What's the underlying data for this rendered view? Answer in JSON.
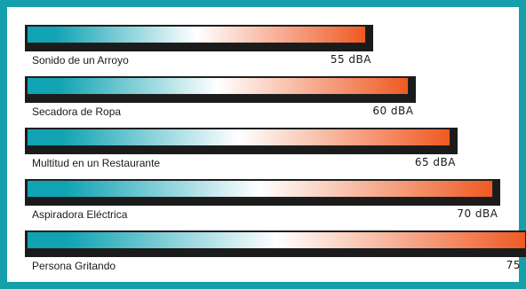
{
  "chart_data": {
    "type": "bar",
    "orientation": "horizontal",
    "categories": [
      "Sonido de un Arroyo",
      "Secadora de Ropa",
      "Multitud en un Restaurante",
      "Aspiradora Eléctrica",
      "Persona Gritando"
    ],
    "values": [
      55,
      60,
      65,
      70,
      75
    ],
    "value_labels": [
      "55 dBA",
      "60 dBA",
      "65 dBA",
      "70 dBA",
      "75"
    ],
    "title": "",
    "xlabel": "",
    "ylabel": "",
    "xlim": [
      0,
      75
    ],
    "grid": false,
    "legend": "none"
  },
  "colors": {
    "frame": "#14a0ab",
    "gradient_start": "#10a3b3",
    "gradient_mid": "#ffffff",
    "gradient_end": "#ef5a23",
    "shadow": "#1b1b1b"
  }
}
